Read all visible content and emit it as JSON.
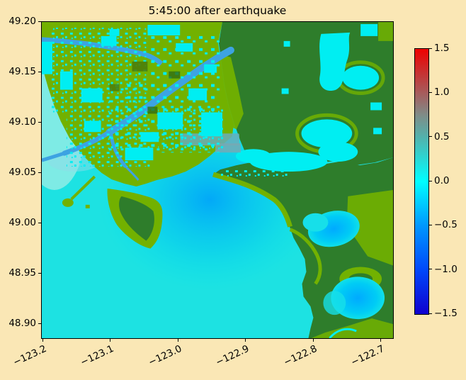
{
  "chart_data": {
    "type": "heatmap",
    "title": "5:45:00 after earthquake",
    "xlabel": "",
    "ylabel": "",
    "x_ticks": [
      "−123.2",
      "−123.1",
      "−123.0",
      "−122.9",
      "−122.8",
      "−122.7"
    ],
    "y_ticks": [
      "49.20",
      "49.15",
      "49.10",
      "49.05",
      "49.00",
      "48.95",
      "48.90"
    ],
    "xlim": [
      -123.202,
      -122.68
    ],
    "ylim": [
      48.885,
      49.2
    ],
    "grid": false,
    "x_tick_rotation_deg": 25,
    "legend_position": "right-colorbar",
    "colorbar": {
      "vmin": -1.5,
      "vmax": 1.5,
      "ticks": [
        "1.5",
        "1.0",
        "0.5",
        "0.0",
        "−0.5",
        "−1.0",
        "−1.5"
      ],
      "tick_values": [
        1.5,
        1.0,
        0.5,
        0.0,
        -0.5,
        -1.0,
        -1.5
      ],
      "stops": [
        [
          1.5,
          "#ee0000"
        ],
        [
          1.0,
          "#a65c5c"
        ],
        [
          0.75,
          "#7f8c88"
        ],
        [
          0.5,
          "#52b2ac"
        ],
        [
          0.0,
          "#00feff"
        ],
        [
          -0.5,
          "#0097ff"
        ],
        [
          -1.0,
          "#0048fb"
        ],
        [
          -1.5,
          "#0f00cf"
        ]
      ]
    },
    "palette": {
      "background": "#fae7b5",
      "sea_surface": "#1de2e2",
      "flooded_cyan": "#00eef2",
      "lowland_green": "#72b100",
      "highland_green": "#2e7d2b",
      "river_blue": "#3da3e2",
      "bay_wave_blue": "#00a2fa",
      "urban_gray": "#68aebc",
      "text": "#000000"
    },
    "map_description": "Coastal river-delta region (approx. lon −123.2 to −122.7, lat 48.89 to 49.20): green lowlands with cyan flooded patches, dark green uplands, blue river channels, cyan sea with blue tsunami wave amplitude in the central bay; colorbar = water surface elevation −1.5 to 1.5"
  }
}
